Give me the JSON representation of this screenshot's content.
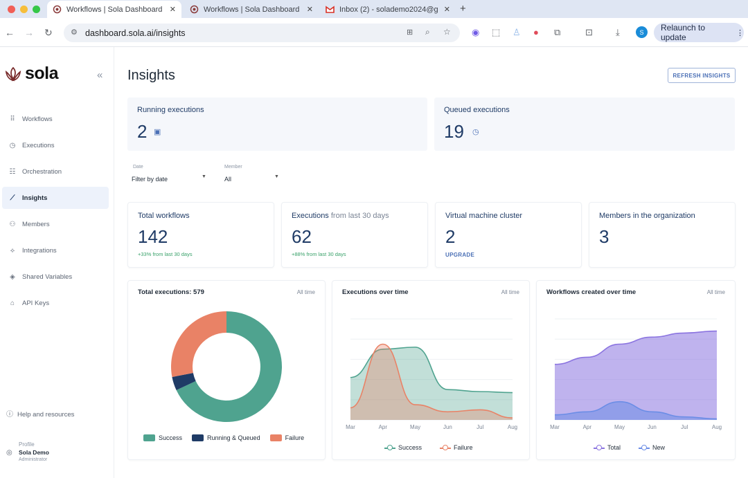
{
  "browser": {
    "tabs": [
      {
        "label": "Workflows | Sola Dashboard",
        "active": true
      },
      {
        "label": "Workflows | Sola Dashboard",
        "active": false
      },
      {
        "label": "Inbox (2) - solademo2024@g",
        "active": false
      }
    ],
    "url": "dashboard.sola.ai/insights",
    "relaunch_label": "Relaunch to update",
    "avatar_letter": "S"
  },
  "sidebar": {
    "brand": "sola",
    "items": [
      {
        "label": "Workflows",
        "icon": "grid-icon"
      },
      {
        "label": "Executions",
        "icon": "clock-icon"
      },
      {
        "label": "Orchestration",
        "icon": "sliders-icon"
      },
      {
        "label": "Insights",
        "icon": "chart-icon"
      },
      {
        "label": "Members",
        "icon": "users-icon"
      },
      {
        "label": "Integrations",
        "icon": "puzzle-icon"
      },
      {
        "label": "Shared Variables",
        "icon": "layers-icon"
      },
      {
        "label": "API Keys",
        "icon": "lock-icon"
      }
    ],
    "help": "Help and resources",
    "profile": {
      "label": "Profile",
      "name": "Sola Demo",
      "role": "Administrator"
    }
  },
  "main": {
    "title": "Insights",
    "refresh_label": "REFRESH INSIGHTS",
    "running": {
      "label": "Running executions",
      "value": "2"
    },
    "queued": {
      "label": "Queued executions",
      "value": "19"
    },
    "filters": {
      "date": {
        "label": "Date",
        "value": "Filter by date"
      },
      "member": {
        "label": "Member",
        "value": "All"
      }
    },
    "stats": {
      "total_workflows": {
        "label": "Total workflows",
        "value": "142",
        "delta": "+33% from last 30 days"
      },
      "executions": {
        "label": "Executions",
        "sub": "from last 30 days",
        "value": "62",
        "delta": "+88% from last 30 days"
      },
      "vm_cluster": {
        "label": "Virtual machine cluster",
        "value": "2",
        "action": "UPGRADE"
      },
      "members": {
        "label": "Members in the organization",
        "value": "3"
      }
    }
  },
  "chart_data": [
    {
      "type": "pie",
      "title": "Total executions: 579",
      "range_label": "All time",
      "categories": [
        "Success",
        "Running & Queued",
        "Failure"
      ],
      "values": [
        0.68,
        0.04,
        0.28
      ],
      "colors": [
        "#4fa38f",
        "#1f3b66",
        "#e98266"
      ]
    },
    {
      "type": "area",
      "title": "Executions over time",
      "range_label": "All time",
      "categories": [
        "Mar",
        "Apr",
        "May",
        "Jun",
        "Jul",
        "Aug"
      ],
      "ylim": [
        0,
        100
      ],
      "series": [
        {
          "name": "Success",
          "color": "#4fa38f",
          "values": [
            42,
            70,
            72,
            30,
            28,
            27
          ]
        },
        {
          "name": "Failure",
          "color": "#e98266",
          "values": [
            12,
            75,
            15,
            8,
            10,
            2
          ]
        }
      ]
    },
    {
      "type": "area",
      "title": "Workflows created over time",
      "range_label": "All time",
      "categories": [
        "Mar",
        "Apr",
        "May",
        "Jun",
        "Jul",
        "Aug"
      ],
      "ylim": [
        0,
        100
      ],
      "series": [
        {
          "name": "Total",
          "color": "#8b74e0",
          "values": [
            55,
            62,
            75,
            82,
            86,
            88
          ]
        },
        {
          "name": "New",
          "color": "#6b8de6",
          "values": [
            5,
            8,
            18,
            8,
            3,
            1
          ]
        }
      ]
    }
  ]
}
